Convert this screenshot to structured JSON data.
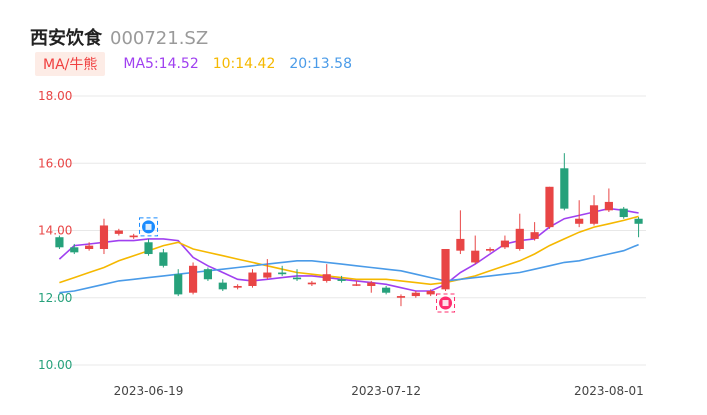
{
  "header": {
    "name": "西安饮食",
    "code": "000721.SZ"
  },
  "legend": {
    "tag": "MA/牛熊",
    "items": [
      {
        "label": "MA5:14.52",
        "color": "#a040f0"
      },
      {
        "label": "10:14.42",
        "color": "#f5b800"
      },
      {
        "label": "20:13.58",
        "color": "#4a9be8"
      }
    ]
  },
  "colors": {
    "up": "#e84545",
    "down": "#26a17b",
    "grid": "#e8e8e8",
    "ylabel_top": "#e84545",
    "ylabel_bottom": "#26a17b"
  },
  "chart_data": {
    "type": "candlestick",
    "ylim": [
      10,
      18
    ],
    "yticks": [
      "18.00",
      "16.00",
      "14.00",
      "12.00",
      "10.00"
    ],
    "xticks": [
      {
        "index": 6,
        "label": "2023-06-19"
      },
      {
        "index": 22,
        "label": "2023-07-12"
      },
      {
        "index": 37,
        "label": "2023-08-01"
      }
    ],
    "candles": [
      {
        "o": 13.8,
        "c": 13.5,
        "h": 13.85,
        "l": 13.45
      },
      {
        "o": 13.5,
        "c": 13.35,
        "h": 13.6,
        "l": 13.3
      },
      {
        "o": 13.45,
        "c": 13.55,
        "h": 13.65,
        "l": 13.4
      },
      {
        "o": 13.45,
        "c": 14.15,
        "h": 14.35,
        "l": 13.3
      },
      {
        "o": 13.9,
        "c": 14.0,
        "h": 14.05,
        "l": 13.85
      },
      {
        "o": 13.8,
        "c": 13.85,
        "h": 13.9,
        "l": 13.75
      },
      {
        "o": 13.65,
        "c": 13.3,
        "h": 13.75,
        "l": 13.25
      },
      {
        "o": 13.35,
        "c": 12.95,
        "h": 13.45,
        "l": 12.9
      },
      {
        "o": 12.7,
        "c": 12.1,
        "h": 12.85,
        "l": 12.05
      },
      {
        "o": 12.15,
        "c": 12.95,
        "h": 13.05,
        "l": 12.1
      },
      {
        "o": 12.85,
        "c": 12.55,
        "h": 12.9,
        "l": 12.5
      },
      {
        "o": 12.45,
        "c": 12.25,
        "h": 12.55,
        "l": 12.2
      },
      {
        "o": 12.3,
        "c": 12.35,
        "h": 12.4,
        "l": 12.25
      },
      {
        "o": 12.35,
        "c": 12.75,
        "h": 12.85,
        "l": 12.3
      },
      {
        "o": 12.6,
        "c": 12.75,
        "h": 13.15,
        "l": 12.55
      },
      {
        "o": 12.75,
        "c": 12.7,
        "h": 12.95,
        "l": 12.65
      },
      {
        "o": 12.6,
        "c": 12.55,
        "h": 12.85,
        "l": 12.5
      },
      {
        "o": 12.4,
        "c": 12.45,
        "h": 12.5,
        "l": 12.35
      },
      {
        "o": 12.5,
        "c": 12.7,
        "h": 13.0,
        "l": 12.45
      },
      {
        "o": 12.55,
        "c": 12.5,
        "h": 12.65,
        "l": 12.45
      },
      {
        "o": 12.4,
        "c": 12.4,
        "h": 12.5,
        "l": 12.35
      },
      {
        "o": 12.35,
        "c": 12.45,
        "h": 12.5,
        "l": 12.15
      },
      {
        "o": 12.3,
        "c": 12.15,
        "h": 12.35,
        "l": 12.1
      },
      {
        "o": 12.0,
        "c": 12.05,
        "h": 12.1,
        "l": 11.75
      },
      {
        "o": 12.05,
        "c": 12.15,
        "h": 12.2,
        "l": 12.0
      },
      {
        "o": 12.1,
        "c": 12.2,
        "h": 12.25,
        "l": 12.05
      },
      {
        "o": 12.25,
        "c": 13.45,
        "h": 13.45,
        "l": 12.2
      },
      {
        "o": 13.4,
        "c": 13.75,
        "h": 14.6,
        "l": 13.3
      },
      {
        "o": 13.05,
        "c": 13.4,
        "h": 13.85,
        "l": 13.0
      },
      {
        "o": 13.4,
        "c": 13.45,
        "h": 13.5,
        "l": 13.35
      },
      {
        "o": 13.5,
        "c": 13.7,
        "h": 13.85,
        "l": 13.45
      },
      {
        "o": 13.45,
        "c": 14.05,
        "h": 14.5,
        "l": 13.4
      },
      {
        "o": 13.75,
        "c": 13.95,
        "h": 14.25,
        "l": 13.7
      },
      {
        "o": 14.1,
        "c": 15.3,
        "h": 15.3,
        "l": 14.05
      },
      {
        "o": 15.85,
        "c": 14.65,
        "h": 16.3,
        "l": 14.6
      },
      {
        "o": 14.2,
        "c": 14.35,
        "h": 14.9,
        "l": 14.1
      },
      {
        "o": 14.2,
        "c": 14.75,
        "h": 15.05,
        "l": 14.15
      },
      {
        "o": 14.6,
        "c": 14.85,
        "h": 15.25,
        "l": 14.55
      },
      {
        "o": 14.65,
        "c": 14.4,
        "h": 14.7,
        "l": 14.35
      },
      {
        "o": 14.35,
        "c": 14.2,
        "h": 14.4,
        "l": 13.8
      }
    ],
    "series": [
      {
        "name": "MA5",
        "color": "#a040f0",
        "values": [
          13.15,
          13.55,
          13.6,
          13.65,
          13.7,
          13.7,
          13.75,
          13.75,
          13.7,
          13.2,
          12.95,
          12.75,
          12.55,
          12.5,
          12.55,
          12.6,
          12.65,
          12.65,
          12.6,
          12.55,
          12.5,
          12.45,
          12.4,
          12.3,
          12.2,
          12.2,
          12.4,
          12.75,
          13.0,
          13.3,
          13.6,
          13.7,
          13.75,
          14.1,
          14.35,
          14.45,
          14.55,
          14.65,
          14.6,
          14.52
        ]
      },
      {
        "name": "MA10",
        "color": "#f5b800",
        "values": [
          12.45,
          12.6,
          12.75,
          12.9,
          13.1,
          13.25,
          13.4,
          13.55,
          13.65,
          13.45,
          13.35,
          13.25,
          13.15,
          13.05,
          12.95,
          12.85,
          12.75,
          12.7,
          12.65,
          12.6,
          12.55,
          12.55,
          12.55,
          12.5,
          12.45,
          12.4,
          12.45,
          12.55,
          12.65,
          12.8,
          12.95,
          13.1,
          13.3,
          13.55,
          13.75,
          13.95,
          14.1,
          14.2,
          14.3,
          14.42
        ]
      },
      {
        "name": "MA20",
        "color": "#4a9be8",
        "values": [
          12.15,
          12.2,
          12.3,
          12.4,
          12.5,
          12.55,
          12.6,
          12.65,
          12.7,
          12.75,
          12.8,
          12.85,
          12.9,
          12.95,
          13.0,
          13.05,
          13.1,
          13.1,
          13.05,
          13.0,
          12.95,
          12.9,
          12.85,
          12.8,
          12.7,
          12.6,
          12.5,
          12.55,
          12.6,
          12.65,
          12.7,
          12.75,
          12.85,
          12.95,
          13.05,
          13.1,
          13.2,
          13.3,
          13.4,
          13.58
        ]
      }
    ],
    "markers": [
      {
        "index": 6,
        "type": "buy",
        "color": "#1a8cff"
      },
      {
        "index": 26,
        "type": "sell",
        "color": "#ff2d6e"
      }
    ]
  }
}
